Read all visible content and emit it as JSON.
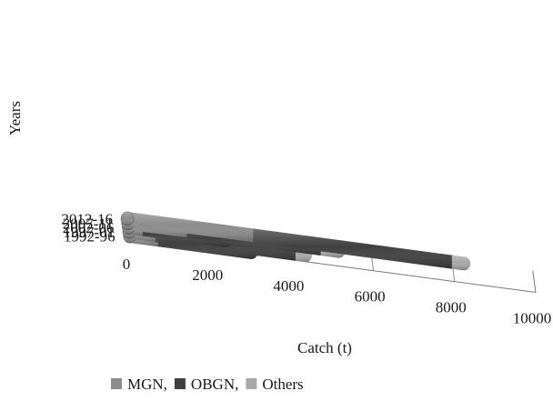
{
  "chart_data": {
    "type": "bar",
    "orientation": "horizontal",
    "stacked": true,
    "style": "3d-cylinder",
    "categories": [
      "1992-96",
      "1997-01",
      "2002-06",
      "2007-11",
      "2012-16"
    ],
    "series": [
      {
        "name": "MGN",
        "values": [
          700,
          650,
          350,
          1450,
          3100
        ],
        "color": "#8c8c8c"
      },
      {
        "name": "OBGN",
        "values": [
          2300,
          3450,
          2050,
          3300,
          4900
        ],
        "color": "#3f3f3f"
      },
      {
        "name": "Others",
        "values": [
          0,
          250,
          0,
          450,
          300
        ],
        "color": "#a8a8a8"
      }
    ],
    "x_ticks": [
      "0",
      "2000",
      "4000",
      "6000",
      "8000",
      "10000"
    ],
    "xlim": [
      0,
      10000
    ],
    "xlabel": "Catch (t)",
    "ylabel": "Years",
    "legend": {
      "position": "bottom",
      "separator": ","
    },
    "grid": true
  }
}
